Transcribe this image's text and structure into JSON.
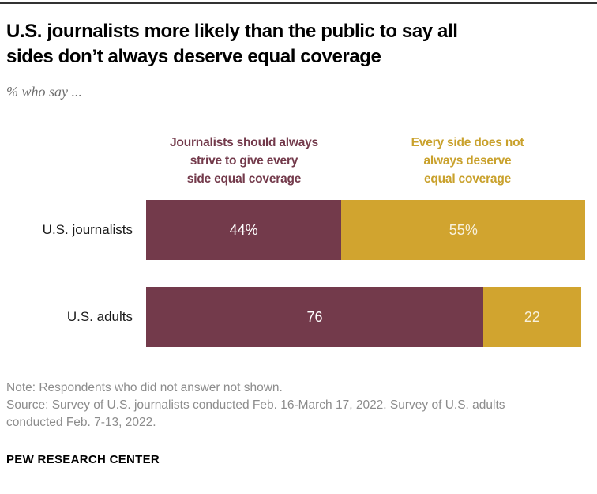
{
  "header": {
    "title_lines": [
      "U.S. journalists more likely than the public to say all",
      "sides don’t always deserve equal coverage"
    ],
    "subtitle": "% who say ..."
  },
  "legend": {
    "left": {
      "lines": [
        "Journalists should always",
        "strive to give every",
        "side equal coverage"
      ],
      "color": "#733A4B"
    },
    "right": {
      "lines": [
        "Every side does not",
        "always deserve",
        "equal coverage"
      ],
      "color": "#C9A12C"
    }
  },
  "chart_data": {
    "type": "bar",
    "orientation": "horizontal",
    "stacked": true,
    "grid": false,
    "axis": "hidden",
    "legend_position": "top",
    "xlim": [
      0,
      100
    ],
    "categories": [
      "U.S. journalists",
      "U.S. adults"
    ],
    "series": [
      {
        "name": "Journalists should always strive to give every side equal coverage",
        "values": [
          44,
          76
        ],
        "labels": [
          "44%",
          "76"
        ],
        "color": "#733A4B",
        "label_color": "#FFFFFF"
      },
      {
        "name": "Every side does not always deserve equal coverage",
        "values": [
          55,
          22
        ],
        "labels": [
          "55%",
          "22"
        ],
        "color": "#D1A42F",
        "label_color": "#F8F1DC"
      }
    ]
  },
  "footer": {
    "note": "Note: Respondents who did not answer not shown.",
    "source_lines": [
      "Source: Survey of U.S. journalists conducted Feb. 16-March 17, 2022. Survey of U.S. adults",
      "conducted Feb. 7-13, 2022."
    ],
    "brand": "PEW RESEARCH CENTER"
  }
}
